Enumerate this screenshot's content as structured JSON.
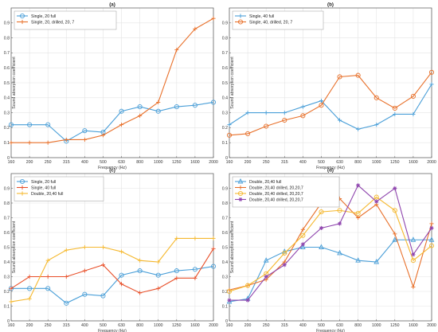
{
  "chart_data": [
    {
      "type": "line",
      "title": "(a)",
      "xlabel": "Frequency (Hz)",
      "ylabel": "Sound absorption coefficient",
      "categories": [
        "160",
        "200",
        "250",
        "315",
        "400",
        "500",
        "630",
        "800",
        "1000",
        "1250",
        "1600",
        "2000"
      ],
      "ylim": [
        0,
        1
      ],
      "yticks": [
        "0",
        "0.1",
        "0.2",
        "0.3",
        "0.4",
        "0.5",
        "0.6",
        "0.7",
        "0.8",
        "0.9"
      ],
      "grid": true,
      "legend_position": "top-left",
      "series": [
        {
          "name": "Single, 20 full",
          "color": "#4a9fd8",
          "marker": "circle",
          "values": [
            0.22,
            0.22,
            0.22,
            0.11,
            0.18,
            0.17,
            0.31,
            0.34,
            0.31,
            0.34,
            0.35,
            0.37
          ]
        },
        {
          "name": "Single, 20, drilled, 20, 7",
          "color": "#e8702a",
          "marker": "plus",
          "values": [
            0.1,
            0.1,
            0.1,
            0.12,
            0.12,
            0.15,
            0.22,
            0.28,
            0.37,
            0.72,
            0.86,
            0.93
          ]
        }
      ]
    },
    {
      "type": "line",
      "title": "(b)",
      "xlabel": "Frequency (Hz)",
      "ylabel": "Sound absorption coefficient",
      "categories": [
        "160",
        "200",
        "250",
        "315",
        "400",
        "500",
        "630",
        "800",
        "1000",
        "1250",
        "1600",
        "2000"
      ],
      "ylim": [
        0,
        1
      ],
      "yticks": [
        "0",
        "0.1",
        "0.2",
        "0.3",
        "0.4",
        "0.5",
        "0.6",
        "0.7",
        "0.8",
        "0.9"
      ],
      "grid": true,
      "legend_position": "top-left",
      "series": [
        {
          "name": "Single, 40 full",
          "color": "#4a9fd8",
          "marker": "plus",
          "values": [
            0.22,
            0.3,
            0.3,
            0.3,
            0.34,
            0.38,
            0.25,
            0.19,
            0.22,
            0.29,
            0.29,
            0.49
          ]
        },
        {
          "name": "Single, 40, drilled, 20, 7",
          "color": "#e8702a",
          "marker": "circle",
          "values": [
            0.15,
            0.16,
            0.21,
            0.25,
            0.28,
            0.35,
            0.54,
            0.55,
            0.4,
            0.33,
            0.41,
            0.57
          ]
        }
      ]
    },
    {
      "type": "line",
      "title": "(c)",
      "xlabel": "Frequency (Hz)",
      "ylabel": "Sound absorption coefficient",
      "categories": [
        "160",
        "200",
        "250",
        "315",
        "400",
        "500",
        "630",
        "800",
        "1000",
        "1250",
        "1600",
        "2000"
      ],
      "ylim": [
        0,
        1
      ],
      "yticks": [
        "0",
        "0.1",
        "0.2",
        "0.3",
        "0.4",
        "0.5",
        "0.6",
        "0.7",
        "0.8",
        "0.9"
      ],
      "grid": true,
      "legend_position": "top-left",
      "series": [
        {
          "name": "Single, 20 full",
          "color": "#4a9fd8",
          "marker": "circle",
          "values": [
            0.22,
            0.22,
            0.22,
            0.12,
            0.18,
            0.17,
            0.31,
            0.34,
            0.31,
            0.34,
            0.35,
            0.37
          ]
        },
        {
          "name": "Single, 40 full",
          "color": "#e8502a",
          "marker": "plus",
          "values": [
            0.22,
            0.3,
            0.3,
            0.3,
            0.34,
            0.38,
            0.25,
            0.19,
            0.22,
            0.29,
            0.29,
            0.49
          ]
        },
        {
          "name": "Double, 20,40 full",
          "color": "#f5b82e",
          "marker": "plus",
          "values": [
            0.13,
            0.15,
            0.41,
            0.48,
            0.5,
            0.5,
            0.47,
            0.41,
            0.4,
            0.56,
            0.56,
            0.56
          ]
        }
      ]
    },
    {
      "type": "line",
      "title": "(d)",
      "xlabel": "Frequency (Hz)",
      "ylabel": "Sound absorption coefficient",
      "categories": [
        "160",
        "200",
        "250",
        "315",
        "400",
        "500",
        "630",
        "800",
        "1000",
        "1250",
        "1600",
        "2000"
      ],
      "ylim": [
        0,
        1
      ],
      "yticks": [
        "0",
        "0.1",
        "0.2",
        "0.3",
        "0.4",
        "0.5",
        "0.6",
        "0.7",
        "0.8",
        "0.9"
      ],
      "grid": true,
      "legend_position": "top-left",
      "series": [
        {
          "name": "Double, 20,40 full",
          "color": "#4a9fd8",
          "marker": "triangle",
          "values": [
            0.13,
            0.15,
            0.41,
            0.47,
            0.5,
            0.5,
            0.46,
            0.41,
            0.4,
            0.55,
            0.55,
            0.55
          ]
        },
        {
          "name": "Double, 20,40 drilled, 20,20,7",
          "color": "#e8702a",
          "marker": "plus",
          "values": [
            0.21,
            0.24,
            0.28,
            0.4,
            0.62,
            0.8,
            0.83,
            0.7,
            0.79,
            0.59,
            0.23,
            0.66
          ]
        },
        {
          "name": "Double, 20,40 drilled, 20,20,7",
          "color": "#f5b82e",
          "marker": "circle",
          "values": [
            0.2,
            0.24,
            0.32,
            0.46,
            0.58,
            0.74,
            0.75,
            0.73,
            0.84,
            0.75,
            0.41,
            0.51
          ]
        },
        {
          "name": "Double, 20,40 drilled, 20,20,7",
          "color": "#8e44ad",
          "marker": "star",
          "values": [
            0.14,
            0.14,
            0.3,
            0.38,
            0.52,
            0.63,
            0.66,
            0.92,
            0.81,
            0.9,
            0.45,
            0.63
          ]
        }
      ]
    }
  ]
}
